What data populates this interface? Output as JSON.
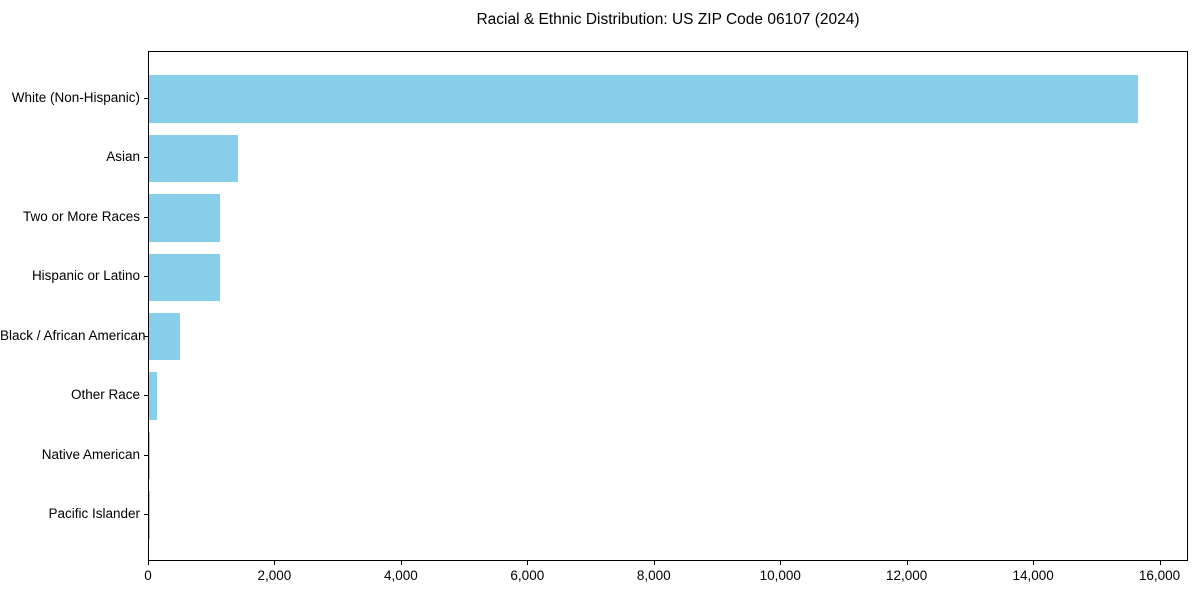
{
  "title": "Racial & Ethnic Distribution: US ZIP Code 06107 (2024)",
  "colors": {
    "bar": "#87CEEB",
    "axis": "#000000",
    "text": "#000000",
    "background": "#FFFFFF"
  },
  "chart_data": {
    "type": "bar",
    "orientation": "horizontal",
    "title": "Racial & Ethnic Distribution: US ZIP Code 06107 (2024)",
    "categories": [
      "White (Non-Hispanic)",
      "Asian",
      "Two or More Races",
      "Hispanic or Latino",
      "Black / African American",
      "Other Race",
      "Native American",
      "Pacific Islander"
    ],
    "values": [
      15640,
      1400,
      1120,
      1130,
      485,
      120,
      15,
      5
    ],
    "bar_color": "#87CEEB",
    "xlabel": "",
    "ylabel": "",
    "xlim": [
      0,
      16450
    ],
    "x_ticks": [
      0,
      2000,
      4000,
      6000,
      8000,
      10000,
      12000,
      14000,
      16000
    ],
    "x_tick_labels": [
      "0",
      "2,000",
      "4,000",
      "6,000",
      "8,000",
      "10,000",
      "12,000",
      "14,000",
      "16,000"
    ],
    "grid": false,
    "legend": "none",
    "bar_fraction": 0.8,
    "axis_margin_fraction": 0.05
  }
}
